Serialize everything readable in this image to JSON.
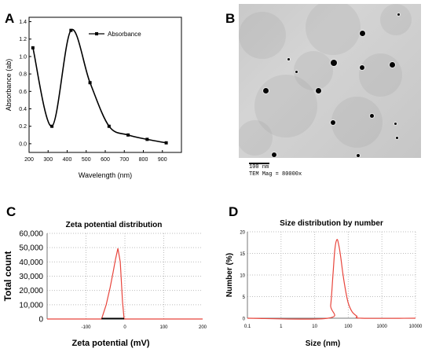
{
  "panels": {
    "A": "A",
    "B": "B",
    "C": "C",
    "D": "D"
  },
  "tem": {
    "scale_bar_label": "100 nm",
    "magnification": "TEM Mag =  80000x"
  },
  "colors": {
    "absorbance_line": "#000000",
    "dls_line": "#e8453c",
    "grid": "#bdbdbd",
    "baseline": "#e8453c"
  },
  "chart_data": [
    {
      "id": "A",
      "type": "line",
      "title": "",
      "xlabel": "Wavelength (nm)",
      "ylabel": "Absorbance (ab)",
      "xlim": [
        200,
        1000
      ],
      "ylim": [
        -0.1,
        1.45
      ],
      "xticks": [
        200,
        300,
        400,
        500,
        600,
        700,
        800,
        900
      ],
      "yticks": [
        0.0,
        0.2,
        0.4,
        0.6,
        0.8,
        1.0,
        1.2,
        1.4
      ],
      "ytick_labels": [
        "0.0",
        "0.2",
        "0.4",
        "0.6",
        "0.8",
        "1.0",
        "1.2",
        "1.4"
      ],
      "legend": "top-right",
      "grid": false,
      "series": [
        {
          "name": "Absorbance",
          "x": [
            220,
            320,
            420,
            520,
            620,
            720,
            820,
            920
          ],
          "y": [
            1.1,
            0.2,
            1.3,
            0.7,
            0.2,
            0.1,
            0.05,
            0.01
          ]
        }
      ]
    },
    {
      "id": "C",
      "type": "line",
      "title": "Zeta potential distribution",
      "xlabel": "Zeta potential (mV)",
      "ylabel": "Total count",
      "xlim": [
        -200,
        200
      ],
      "ylim": [
        0,
        60000
      ],
      "xticks": [
        -100,
        0,
        100,
        200
      ],
      "yticks": [
        0,
        10000,
        20000,
        30000,
        40000,
        50000,
        60000
      ],
      "ytick_labels": [
        "0",
        "10,000",
        "20,000",
        "30,000",
        "40,000",
        "50,000",
        "60,000"
      ],
      "grid": true,
      "series": [
        {
          "x": [
            -200,
            -60,
            -48,
            -38,
            -30,
            -24,
            -18,
            -12,
            -6,
            -2,
            200
          ],
          "y": [
            0,
            0,
            10000,
            22000,
            33000,
            42000,
            49500,
            40000,
            12000,
            0,
            0
          ]
        }
      ]
    },
    {
      "id": "D",
      "type": "line",
      "title": "Size distribution by number",
      "xlabel": "Size (nm)",
      "ylabel": "Number (%)",
      "xscale": "log",
      "xlim": [
        0.1,
        10000
      ],
      "ylim": [
        0,
        20
      ],
      "xticks": [
        0.1,
        1,
        10,
        100,
        1000,
        10000
      ],
      "xtick_labels": [
        "0.1",
        "1",
        "10",
        "100",
        "1000",
        "10000"
      ],
      "yticks": [
        0,
        5,
        10,
        15,
        20
      ],
      "ytick_labels": [
        "0",
        "5",
        "10",
        "15",
        "20"
      ],
      "grid": true,
      "series": [
        {
          "x": [
            0.1,
            25,
            30,
            35,
            40,
            46,
            52,
            60,
            70,
            85,
            100,
            130,
            180,
            250,
            10000
          ],
          "y": [
            0,
            0,
            3,
            10,
            16,
            18.2,
            17,
            14,
            10,
            6,
            3.5,
            1.5,
            0.5,
            0,
            0
          ]
        }
      ]
    }
  ]
}
